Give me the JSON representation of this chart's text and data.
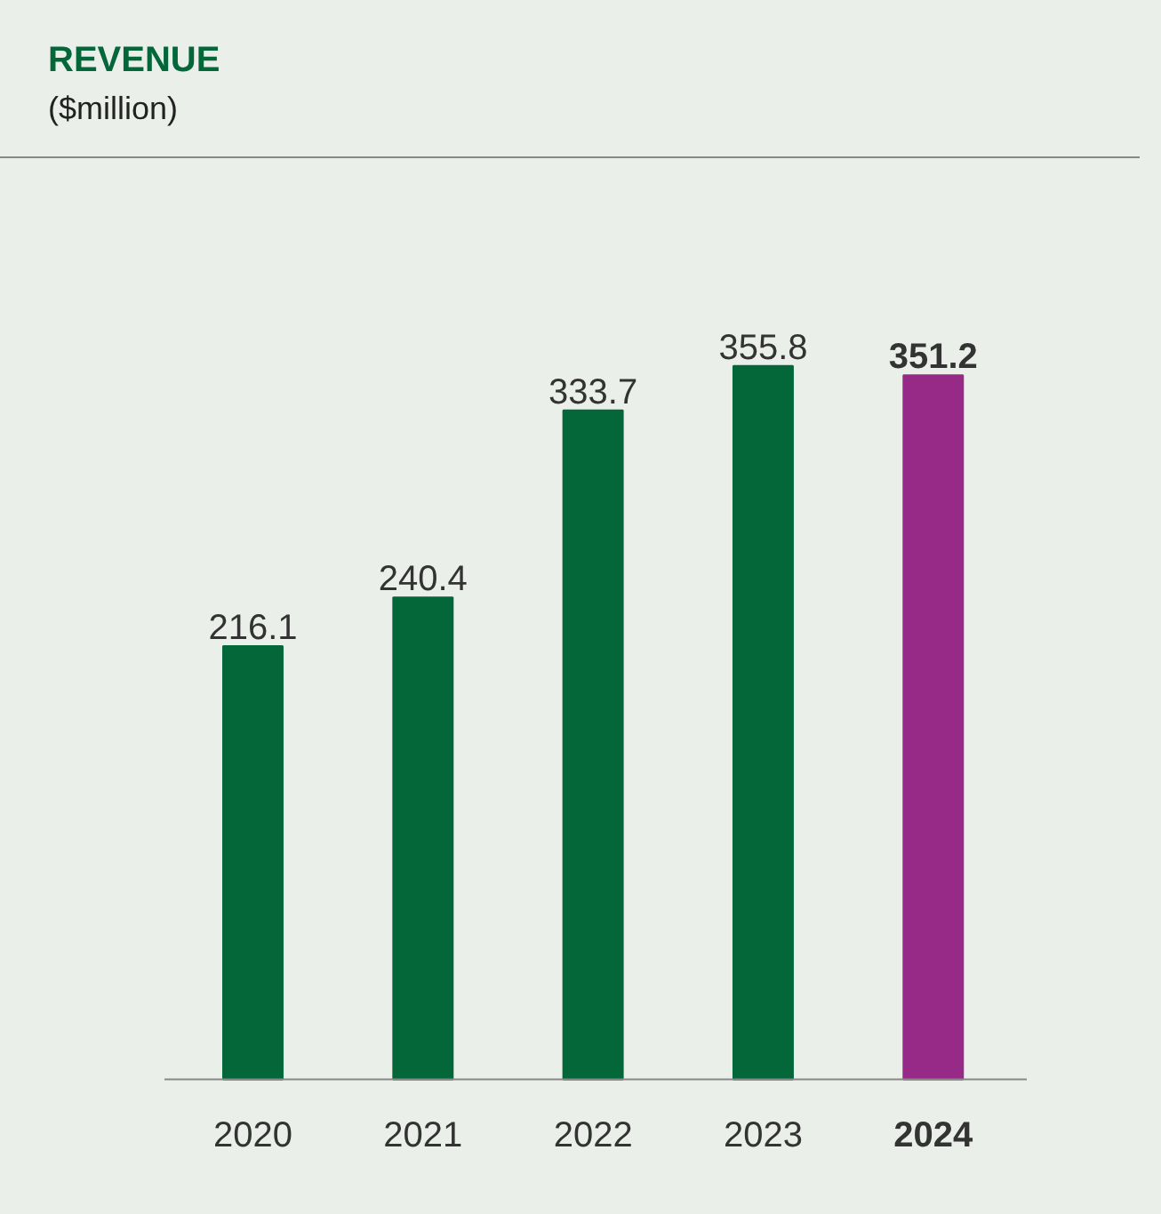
{
  "chart_data": {
    "type": "bar",
    "title": "REVENUE",
    "subtitle": "($million)",
    "categories": [
      "2020",
      "2021",
      "2022",
      "2023",
      "2024"
    ],
    "values": [
      216.1,
      240.4,
      333.7,
      355.8,
      351.2
    ],
    "colors": [
      "#04673a",
      "#04673a",
      "#04673a",
      "#04673a",
      "#962a86"
    ],
    "data_labels": true
  }
}
